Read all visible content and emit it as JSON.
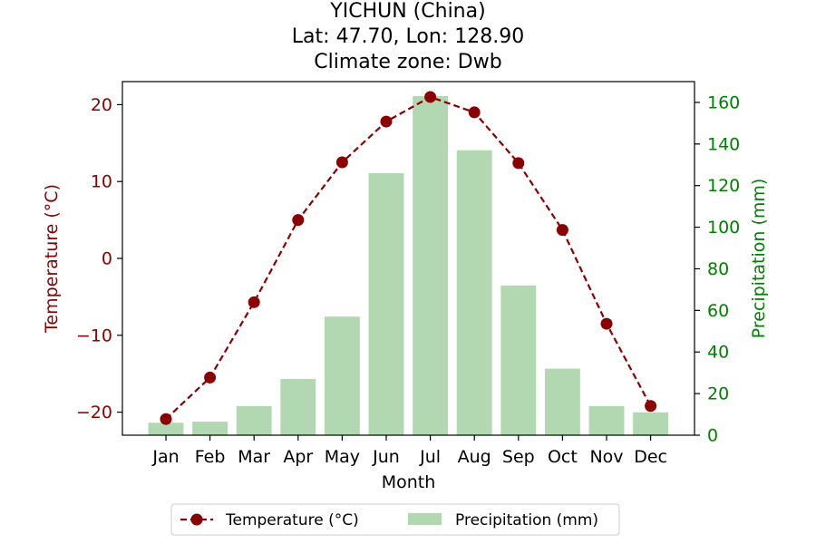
{
  "title": {
    "line1": "YICHUN (China)",
    "line2": "Lat: 47.70, Lon: 128.90",
    "line3": "Climate zone: Dwb"
  },
  "chart_data": {
    "type": "bar+line",
    "categories": [
      "Jan",
      "Feb",
      "Mar",
      "Apr",
      "May",
      "Jun",
      "Jul",
      "Aug",
      "Sep",
      "Oct",
      "Nov",
      "Dec"
    ],
    "xlabel": "Month",
    "temperature": {
      "name": "Temperature (°C)",
      "axis_label": "Temperature (°C)",
      "values": [
        -20.9,
        -15.5,
        -5.7,
        5.0,
        12.5,
        17.8,
        21.0,
        19.0,
        12.4,
        3.7,
        -8.5,
        -19.2
      ],
      "ylim": [
        -23.0,
        23.0
      ],
      "ticks": [
        -20,
        -10,
        0,
        10,
        20
      ],
      "tick_labels": [
        "−20",
        "−10",
        "0",
        "10",
        "20"
      ],
      "color": "#8b0000",
      "line_style": "dashed",
      "marker": "circle"
    },
    "precipitation": {
      "name": "Precipitation (mm)",
      "axis_label": "Precipitation (mm)",
      "values": [
        6,
        6.5,
        14,
        27,
        57,
        126,
        163,
        137,
        72,
        32,
        14,
        11
      ],
      "ylim": [
        0,
        170
      ],
      "ticks": [
        0,
        20,
        40,
        60,
        80,
        100,
        120,
        140,
        160
      ],
      "tick_labels": [
        "0",
        "20",
        "40",
        "60",
        "80",
        "100",
        "120",
        "140",
        "160"
      ],
      "color": "#b2d8b2",
      "axis_color": "#008000"
    },
    "legend": {
      "placement": "bottom-center",
      "entries": [
        "Temperature (°C)",
        "Precipitation (mm)"
      ]
    },
    "grid": false
  }
}
